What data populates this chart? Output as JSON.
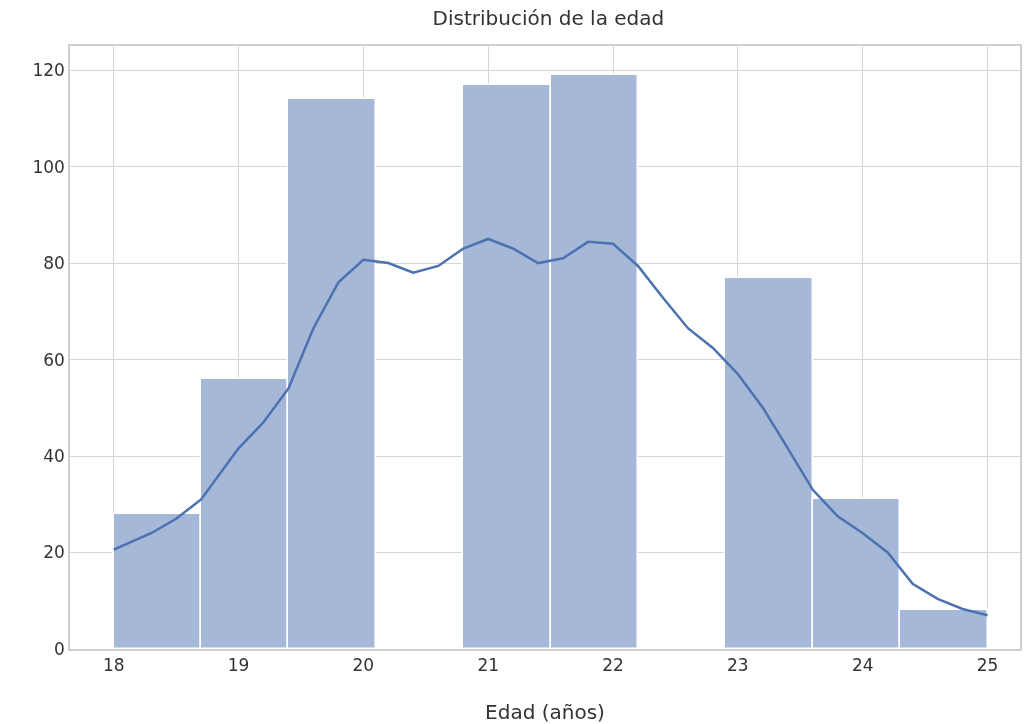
{
  "chart_data": {
    "type": "histogram",
    "title": "Distribución de la edad",
    "xlabel": "Edad (años)",
    "bins": [
      18,
      18.7,
      19.4,
      20.1,
      20.8,
      21.5,
      22.2,
      22.9,
      23.6,
      24.3,
      25
    ],
    "values": [
      28,
      56,
      114,
      0,
      117,
      119,
      0,
      77,
      31,
      8
    ],
    "color": "#a5b8d7",
    "series": [
      {
        "type": "line",
        "color": "#4c72b0",
        "x": [
          18,
          18.3,
          18.5,
          18.7,
          19,
          19.2,
          19.4,
          19.6,
          19.8,
          20,
          20.2,
          20.4,
          20.6,
          20.8,
          21,
          21.2,
          21.4,
          21.6,
          21.8,
          22,
          22.2,
          22.4,
          22.6,
          22.8,
          23,
          23.2,
          23.4,
          23.6,
          23.8,
          24,
          24.2,
          24.4,
          24.6,
          24.8,
          25
        ],
        "values": [
          20.6,
          24,
          27,
          31,
          41.6,
          47,
          54,
          66.5,
          76,
          80.7,
          80,
          78,
          79.4,
          83,
          85,
          83,
          80,
          81,
          84.4,
          84,
          79.4,
          72.8,
          66.5,
          62.4,
          57,
          50,
          41.6,
          33,
          27.5,
          24,
          20,
          13.5,
          10.4,
          8.3,
          7
        ]
      }
    ],
    "xlim": [
      17.65,
      25.26
    ],
    "ylim": [
      0,
      125
    ],
    "xticks": [
      18,
      19,
      20,
      21,
      22,
      23,
      24,
      25
    ],
    "yticks": [
      0,
      20,
      40,
      60,
      80,
      100,
      120
    ],
    "grid": true
  }
}
